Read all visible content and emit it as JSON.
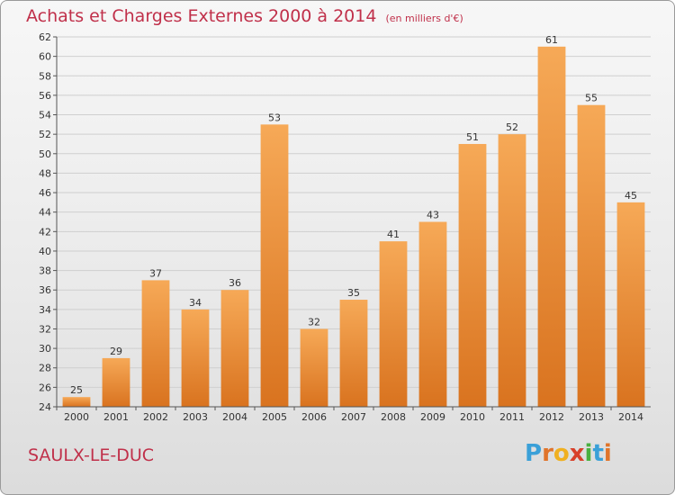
{
  "header": {
    "title": "Achats et Charges Externes 2000 à 2014",
    "unit": "(en milliers d'€)"
  },
  "footer": {
    "place": "SAULX-LE-DUC",
    "logo": [
      "P",
      "r",
      "o",
      "x",
      "i",
      "t",
      "i"
    ],
    "logo_colors": [
      "#3aa0d8",
      "#e0742a",
      "#f0b020",
      "#d8402a",
      "#4ab040",
      "#3aa0d8",
      "#e0742a"
    ]
  },
  "colors": {
    "bar_top": "#f6a957",
    "bar_bottom": "#d9731f",
    "grid": "#cfcfcf",
    "axis": "#555555"
  },
  "chart_data": {
    "type": "bar",
    "title": "Achats et Charges Externes 2000 à 2014",
    "subtitle": "(en milliers d'€)",
    "categories": [
      "2000",
      "2001",
      "2002",
      "2003",
      "2004",
      "2005",
      "2006",
      "2007",
      "2008",
      "2009",
      "2010",
      "2011",
      "2012",
      "2013",
      "2014"
    ],
    "values": [
      25,
      29,
      37,
      34,
      36,
      53,
      32,
      35,
      41,
      43,
      51,
      52,
      61,
      55,
      45
    ],
    "ylim": [
      24,
      62
    ],
    "yticks": [
      24,
      26,
      28,
      30,
      32,
      34,
      36,
      38,
      40,
      42,
      44,
      46,
      48,
      50,
      52,
      54,
      56,
      58,
      60,
      62
    ],
    "grid": true
  }
}
